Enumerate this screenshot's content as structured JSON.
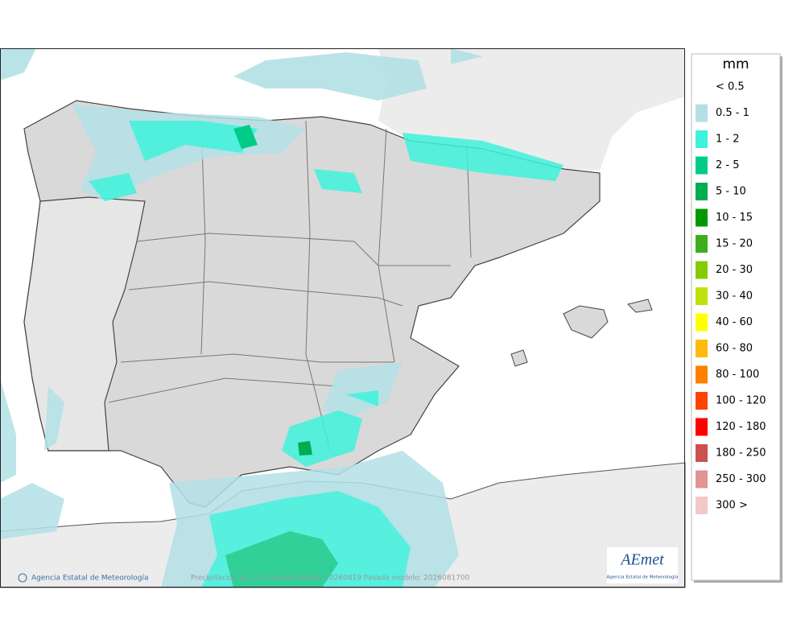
{
  "legend": {
    "title": "mm",
    "items": [
      {
        "label": "< 0.5"
      },
      {
        "label": "0.5 - 1",
        "color": "#b3e0e5"
      },
      {
        "label": "1 - 2",
        "color": "#3ef2dc"
      },
      {
        "label": "2 - 5",
        "color": "#00cc88"
      },
      {
        "label": "5 - 10",
        "color": "#00ad50"
      },
      {
        "label": "10 - 15",
        "color": "#009a00"
      },
      {
        "label": "15 - 20",
        "color": "#3fae1e"
      },
      {
        "label": "20 - 30",
        "color": "#84cc00"
      },
      {
        "label": "30 - 40",
        "color": "#c0e010"
      },
      {
        "label": "40 - 60",
        "color": "#ffff00"
      },
      {
        "label": "60 - 80",
        "color": "#ffba10"
      },
      {
        "label": "80 - 100",
        "color": "#ff8000"
      },
      {
        "label": "100 - 120",
        "color": "#ff4400"
      },
      {
        "label": "120 - 180",
        "color": "#ff0000"
      },
      {
        "label": "180 - 250",
        "color": "#cc5050"
      },
      {
        "label": "250 - 300",
        "color": "#e09494"
      },
      {
        "label": "300 >",
        "color": "#f2c8c8"
      }
    ]
  },
  "footer": {
    "credit": "Agencia Estatal de Meteorología",
    "caption": "Precipitación en 24 h media  Validez: 20260819 Pasada modelo: 2026081700"
  },
  "logo": {
    "name": "AEmet",
    "subtitle": "Agencia Estatal de Meteorología"
  }
}
